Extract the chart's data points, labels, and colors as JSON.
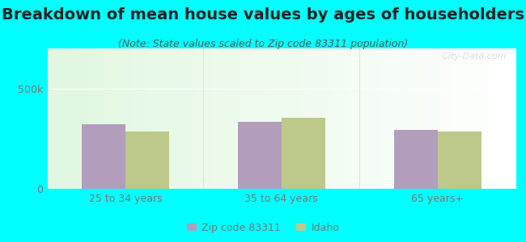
{
  "title": "Breakdown of mean house values by ages of householders",
  "subtitle": "(Note: State values scaled to Zip code 83311 population)",
  "categories": [
    "25 to 34 years",
    "35 to 64 years",
    "65 years+"
  ],
  "zip_values": [
    320000,
    335000,
    295000
  ],
  "state_values": [
    285000,
    355000,
    285000
  ],
  "zip_color": "#b39dbd",
  "state_color": "#bdc98a",
  "ylim": [
    0,
    700000
  ],
  "ytick_labels": [
    "0",
    "500k"
  ],
  "ytick_values": [
    0,
    500000
  ],
  "background_outer": "#00ffff",
  "bar_width": 0.28,
  "legend_zip_label": "Zip code 83311",
  "legend_state_label": "Idaho",
  "watermark": "  City-Data.com",
  "title_fontsize": 14,
  "subtitle_fontsize": 9,
  "tick_fontsize": 9,
  "title_color": "#222222",
  "subtitle_color": "#555555",
  "tick_color": "#777777"
}
